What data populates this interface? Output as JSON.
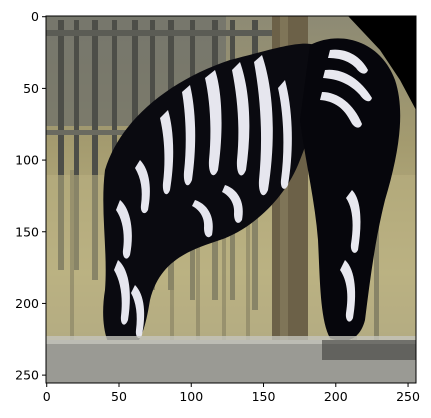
{
  "axes": {
    "x_ticks": [
      0,
      50,
      100,
      150,
      200,
      250
    ],
    "y_ticks": [
      0,
      50,
      100,
      150,
      200,
      250
    ],
    "xlim": [
      -0.5,
      255.5
    ],
    "ylim": [
      255.5,
      -0.5
    ]
  },
  "image": {
    "subject_icon": "zebra-photo",
    "palette": {
      "background_white": "#ffffff",
      "frame": "#000000",
      "wall_olive": "#a59c6e",
      "wall_light": "#c7bd8b",
      "bar_gray": "#7b7d76",
      "post_brown": "#6c6148",
      "stripe_dark": "#05050a",
      "stripe_light": "#e8e8ef",
      "floor_gray": "#9a9a94",
      "dark_corner": "#000000"
    }
  }
}
